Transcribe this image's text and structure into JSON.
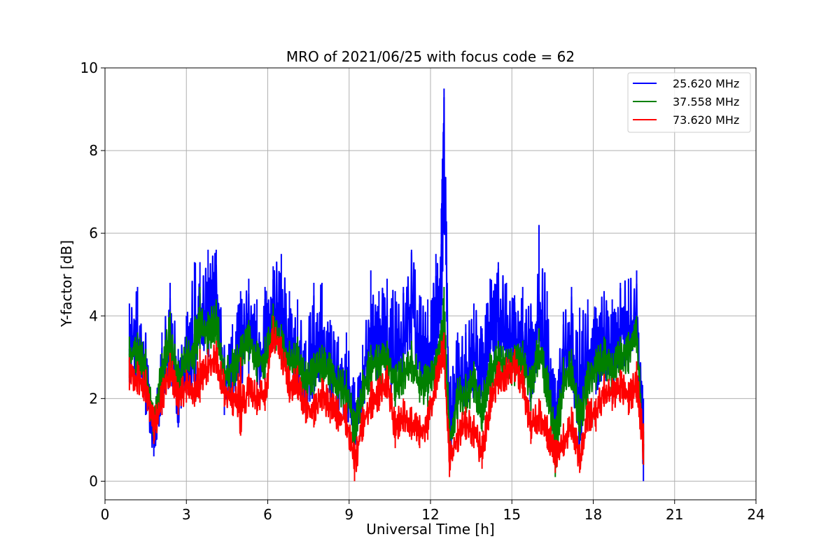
{
  "chart_data": {
    "type": "line",
    "title": "MRO of 2021/06/25 with focus code = 62",
    "xlabel": "Universal Time [h]",
    "ylabel": "Y-factor [dB]",
    "xlim": [
      0,
      24
    ],
    "ylim": [
      -0.45,
      10
    ],
    "x_ticks": [
      0,
      3,
      6,
      9,
      12,
      15,
      18,
      21,
      24
    ],
    "y_ticks": [
      0,
      2,
      4,
      6,
      8,
      10
    ],
    "grid": true,
    "legend_position": "top-right",
    "series": [
      {
        "name": "25.620 MHz",
        "color": "#0000ff",
        "x": [
          0.9,
          1.2,
          1.5,
          1.8,
          2.1,
          2.4,
          2.7,
          3.0,
          3.3,
          3.5,
          3.8,
          4.1,
          4.4,
          4.7,
          5.0,
          5.3,
          5.6,
          5.9,
          6.2,
          6.5,
          6.8,
          7.1,
          7.4,
          7.7,
          8.0,
          8.3,
          8.6,
          8.9,
          9.2,
          9.5,
          9.8,
          10.1,
          10.4,
          10.7,
          11.0,
          11.3,
          11.6,
          11.9,
          12.2,
          12.4,
          12.5,
          12.7,
          13.0,
          13.3,
          13.6,
          13.9,
          14.2,
          14.5,
          14.8,
          15.1,
          15.4,
          15.7,
          16.0,
          16.3,
          16.6,
          16.9,
          17.2,
          17.5,
          17.8,
          18.1,
          18.4,
          18.7,
          19.0,
          19.3,
          19.6,
          19.85
        ],
        "y": [
          3.2,
          3.4,
          2.6,
          0.9,
          2.5,
          3.3,
          2.1,
          2.9,
          2.8,
          4.2,
          3.9,
          4.6,
          2.3,
          2.6,
          3.1,
          3.7,
          2.9,
          3.3,
          4.1,
          3.8,
          3.0,
          3.1,
          2.3,
          2.6,
          3.2,
          2.7,
          2.4,
          2.3,
          1.4,
          2.4,
          3.6,
          3.3,
          3.2,
          2.7,
          3.3,
          4.3,
          3.0,
          2.8,
          3.5,
          5.4,
          8.2,
          1.1,
          2.3,
          2.5,
          2.9,
          2.6,
          3.6,
          3.9,
          3.5,
          3.4,
          3.5,
          2.6,
          3.9,
          2.7,
          1.4,
          3.1,
          3.2,
          1.2,
          3.1,
          3.0,
          3.4,
          2.8,
          3.6,
          3.5,
          4.1,
          0.9
        ],
        "y_max": [
          4.3,
          4.7,
          3.6,
          1.6,
          3.6,
          4.8,
          3.2,
          4.0,
          5.3,
          5.3,
          5.6,
          5.6,
          3.3,
          3.8,
          4.6,
          4.9,
          4.4,
          4.7,
          5.2,
          5.5,
          4.6,
          4.4,
          3.4,
          4.8,
          4.8,
          3.9,
          3.5,
          3.6,
          2.4,
          3.3,
          5.1,
          4.6,
          4.9,
          4.6,
          4.7,
          5.6,
          4.5,
          4.4,
          5.5,
          6.6,
          9.5,
          2.4,
          3.6,
          3.8,
          4.3,
          3.7,
          4.9,
          5.3,
          4.8,
          4.5,
          4.7,
          4.3,
          6.2,
          4.6,
          2.5,
          4.1,
          4.7,
          4.2,
          4.4,
          4.2,
          4.6,
          4.4,
          4.8,
          4.9,
          5.1,
          2.0
        ],
        "y_min": [
          2.4,
          2.3,
          1.6,
          0.6,
          1.6,
          2.3,
          1.3,
          2.1,
          1.9,
          3.2,
          2.9,
          3.6,
          1.6,
          1.8,
          2.3,
          2.6,
          2.1,
          2.4,
          3.2,
          2.9,
          2.2,
          2.2,
          1.6,
          1.8,
          2.3,
          1.8,
          1.7,
          1.5,
          0.8,
          1.4,
          2.6,
          2.4,
          2.3,
          1.8,
          2.4,
          3.2,
          2.1,
          1.9,
          2.5,
          3.6,
          6.0,
          0.6,
          1.4,
          1.7,
          2.0,
          1.8,
          2.7,
          2.9,
          2.6,
          2.5,
          2.6,
          1.7,
          2.9,
          1.8,
          0.8,
          2.2,
          2.3,
          0.7,
          2.2,
          2.1,
          2.5,
          1.9,
          2.7,
          2.6,
          3.2,
          0.0
        ]
      },
      {
        "name": "37.558 MHz",
        "color": "#008000",
        "x": [
          0.9,
          1.2,
          1.5,
          1.8,
          2.1,
          2.4,
          2.7,
          3.0,
          3.3,
          3.5,
          3.8,
          4.1,
          4.4,
          4.7,
          5.0,
          5.3,
          5.6,
          5.9,
          6.2,
          6.5,
          6.8,
          7.1,
          7.4,
          7.7,
          8.0,
          8.3,
          8.6,
          8.9,
          9.2,
          9.5,
          9.8,
          10.1,
          10.4,
          10.7,
          11.0,
          11.3,
          11.6,
          11.9,
          12.2,
          12.4,
          12.5,
          12.7,
          13.0,
          13.3,
          13.6,
          13.9,
          14.2,
          14.5,
          14.8,
          15.1,
          15.4,
          15.7,
          16.0,
          16.3,
          16.6,
          16.9,
          17.2,
          17.5,
          17.8,
          18.1,
          18.4,
          18.7,
          19.0,
          19.3,
          19.6,
          19.85
        ],
        "y": [
          3.0,
          3.1,
          2.7,
          1.4,
          2.6,
          3.4,
          2.4,
          3.0,
          3.1,
          3.7,
          3.5,
          3.9,
          2.5,
          2.7,
          3.0,
          3.4,
          2.9,
          3.0,
          3.8,
          3.3,
          2.9,
          3.0,
          2.4,
          2.6,
          2.8,
          2.6,
          2.3,
          2.2,
          1.2,
          2.2,
          2.8,
          2.8,
          2.9,
          2.3,
          2.6,
          2.9,
          2.4,
          2.3,
          2.7,
          3.4,
          3.8,
          1.0,
          2.0,
          2.1,
          2.4,
          1.7,
          2.6,
          2.9,
          2.7,
          2.8,
          2.9,
          2.2,
          3.2,
          2.3,
          1.0,
          2.5,
          2.7,
          1.5,
          2.4,
          2.7,
          3.0,
          2.6,
          3.0,
          3.1,
          3.6,
          0.8
        ],
        "y_max": [
          3.5,
          3.6,
          3.2,
          1.8,
          3.1,
          4.1,
          2.9,
          3.5,
          3.9,
          4.7,
          4.1,
          4.4,
          3.0,
          3.2,
          3.5,
          3.9,
          3.4,
          3.5,
          4.3,
          3.8,
          3.4,
          3.5,
          2.9,
          3.1,
          3.3,
          3.1,
          2.8,
          2.7,
          1.7,
          2.7,
          3.3,
          3.3,
          3.4,
          2.8,
          3.1,
          3.4,
          2.9,
          2.8,
          3.2,
          3.9,
          4.7,
          1.5,
          2.5,
          2.6,
          2.9,
          2.2,
          3.1,
          3.4,
          3.2,
          3.3,
          3.4,
          2.7,
          3.7,
          2.8,
          1.5,
          3.0,
          3.2,
          2.0,
          2.9,
          3.2,
          3.5,
          3.1,
          3.5,
          3.6,
          4.0,
          1.2
        ],
        "y_min": [
          2.5,
          2.6,
          2.2,
          1.0,
          2.1,
          2.9,
          1.9,
          2.5,
          2.6,
          3.2,
          3.0,
          3.4,
          2.0,
          2.2,
          2.5,
          2.9,
          2.4,
          2.5,
          3.3,
          2.8,
          2.4,
          2.5,
          1.9,
          2.1,
          2.3,
          2.1,
          1.8,
          1.7,
          0.7,
          1.7,
          2.3,
          2.3,
          2.4,
          1.8,
          2.1,
          2.4,
          1.9,
          1.8,
          2.2,
          2.9,
          3.3,
          0.6,
          1.5,
          1.6,
          1.9,
          1.2,
          2.1,
          2.4,
          2.2,
          2.3,
          2.4,
          1.7,
          2.7,
          1.8,
          0.1,
          2.0,
          2.2,
          1.0,
          1.9,
          2.2,
          2.5,
          2.1,
          2.5,
          2.6,
          3.1,
          0.4
        ]
      },
      {
        "name": "73.620 MHz",
        "color": "#ff0000",
        "x": [
          0.9,
          1.2,
          1.5,
          1.8,
          2.1,
          2.4,
          2.7,
          3.0,
          3.3,
          3.5,
          3.8,
          4.1,
          4.4,
          4.7,
          5.0,
          5.3,
          5.6,
          5.9,
          6.2,
          6.5,
          6.8,
          7.1,
          7.4,
          7.7,
          8.0,
          8.3,
          8.6,
          8.9,
          9.2,
          9.5,
          9.8,
          10.1,
          10.4,
          10.7,
          11.0,
          11.3,
          11.6,
          11.9,
          12.2,
          12.4,
          12.5,
          12.7,
          13.0,
          13.3,
          13.6,
          13.9,
          14.2,
          14.5,
          14.8,
          15.1,
          15.4,
          15.7,
          16.0,
          16.3,
          16.6,
          16.9,
          17.2,
          17.5,
          17.8,
          18.1,
          18.4,
          18.7,
          19.0,
          19.3,
          19.6,
          19.85
        ],
        "y": [
          2.6,
          2.5,
          2.3,
          1.3,
          2.0,
          2.7,
          2.0,
          2.3,
          2.2,
          2.3,
          2.8,
          3.0,
          2.2,
          2.0,
          1.6,
          2.2,
          2.0,
          2.1,
          3.6,
          3.1,
          2.3,
          2.4,
          1.8,
          1.7,
          2.1,
          1.8,
          1.6,
          1.5,
          0.5,
          1.4,
          1.9,
          2.1,
          2.4,
          1.2,
          1.6,
          1.4,
          1.2,
          1.4,
          2.4,
          3.0,
          3.1,
          0.4,
          1.1,
          1.4,
          1.2,
          0.7,
          1.9,
          2.5,
          2.6,
          2.8,
          2.4,
          1.3,
          1.6,
          1.2,
          0.6,
          1.0,
          1.4,
          0.5,
          1.6,
          1.6,
          2.2,
          2.1,
          2.3,
          2.0,
          2.3,
          0.9
        ],
        "y_max": [
          3.0,
          2.9,
          2.7,
          1.8,
          2.4,
          3.1,
          2.4,
          2.7,
          2.6,
          3.2,
          3.2,
          3.4,
          2.6,
          2.4,
          3.0,
          2.6,
          2.4,
          2.5,
          4.0,
          3.5,
          2.7,
          2.8,
          2.2,
          2.1,
          2.5,
          2.2,
          2.0,
          1.9,
          0.9,
          1.8,
          2.4,
          2.5,
          2.8,
          1.7,
          2.0,
          1.8,
          1.6,
          1.8,
          2.8,
          3.4,
          3.6,
          0.9,
          1.5,
          1.8,
          1.6,
          1.1,
          2.3,
          2.9,
          3.0,
          3.2,
          2.8,
          1.7,
          2.0,
          1.6,
          1.0,
          1.4,
          1.8,
          0.9,
          2.0,
          2.0,
          2.6,
          2.5,
          2.7,
          2.4,
          2.9,
          1.4
        ],
        "y_min": [
          2.2,
          2.1,
          1.9,
          0.9,
          1.6,
          2.3,
          1.6,
          1.9,
          1.8,
          1.9,
          2.4,
          2.6,
          1.8,
          1.6,
          1.1,
          1.8,
          1.6,
          1.7,
          3.2,
          2.7,
          1.9,
          2.0,
          1.4,
          1.3,
          1.7,
          1.4,
          1.2,
          1.1,
          0.0,
          1.0,
          1.5,
          1.7,
          2.0,
          0.8,
          1.2,
          1.0,
          0.8,
          1.0,
          2.0,
          2.6,
          2.7,
          0.1,
          0.7,
          1.0,
          0.8,
          0.3,
          1.5,
          2.1,
          2.2,
          2.4,
          2.0,
          0.9,
          1.2,
          0.8,
          0.2,
          0.6,
          1.0,
          0.2,
          1.2,
          1.2,
          1.8,
          1.7,
          1.9,
          1.6,
          1.9,
          0.4
        ]
      }
    ]
  }
}
